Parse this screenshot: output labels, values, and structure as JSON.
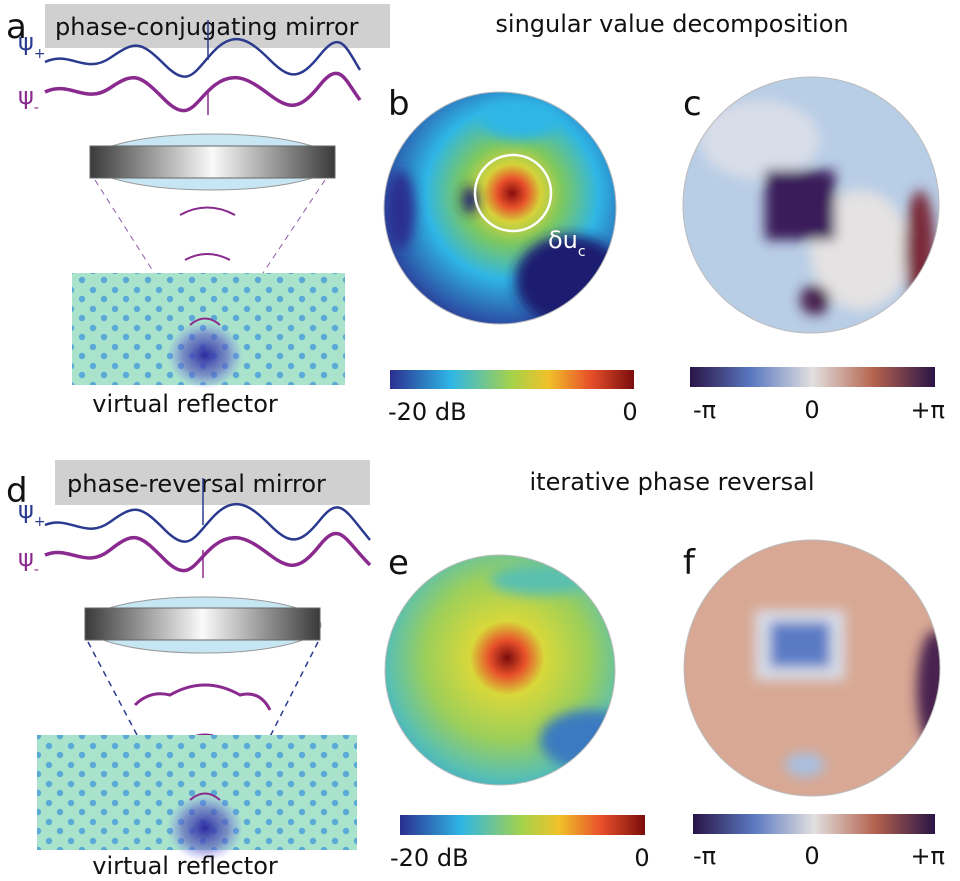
{
  "top": {
    "letter": "a",
    "mirror": "phase-conjugating mirror",
    "psi_plus": {
      "symbol": "ψ",
      "sub": "+"
    },
    "psi_minus": {
      "symbol": "ψ",
      "sub": "-"
    },
    "reflector": "virtual reflector",
    "title": "singular value decomposition",
    "amplitude_panel": "b",
    "phase_panel": "c",
    "focal_spot": {
      "symbol": "δu",
      "sub": "c"
    },
    "amplitude_scale": {
      "min": "-20 dB",
      "max": "0"
    },
    "phase_scale": {
      "min": "-π",
      "mid": "0",
      "max": "+π"
    }
  },
  "bottom": {
    "letter": "d",
    "mirror": "phase-reversal mirror",
    "psi_plus": {
      "symbol": "ψ",
      "sub": "+"
    },
    "psi_minus": {
      "symbol": "ψ",
      "sub": "-"
    },
    "reflector": "virtual reflector",
    "title": "iterative phase reversal",
    "amplitude_panel": "e",
    "phase_panel": "f",
    "amplitude_scale": {
      "min": "-20 dB",
      "max": "0"
    },
    "phase_scale": {
      "min": "-π",
      "mid": "0",
      "max": "+π"
    }
  }
}
